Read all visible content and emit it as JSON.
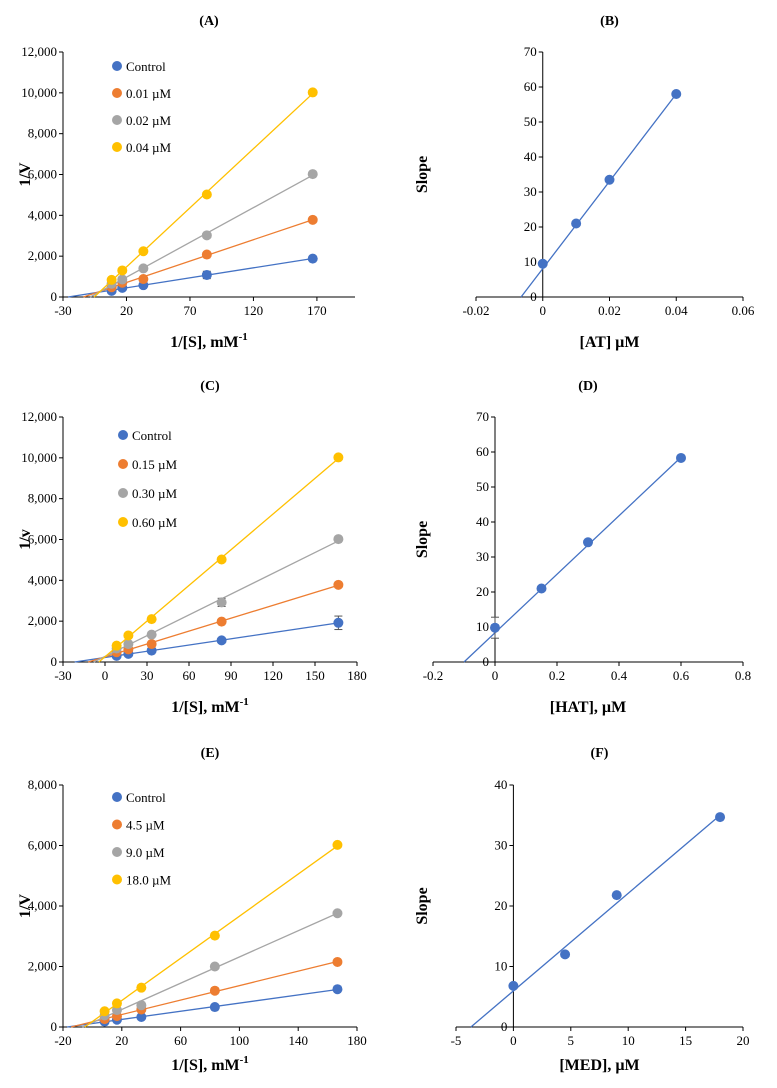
{
  "colors": {
    "control": "#4472C4",
    "orange": "#ED7D31",
    "gray": "#A5A5A5",
    "yellow": "#FFC000",
    "axis": "#000000",
    "fitline": "#4472C4"
  },
  "chart_data": [
    {
      "id": "A",
      "kind": "lb",
      "type": "scatter",
      "title": "(A)",
      "xlabel": "1/[S], mM",
      "xlabel_sup": "-1",
      "ylabel": "1/V",
      "xlim": [
        -30,
        200
      ],
      "ylim": [
        0,
        12000
      ],
      "xticks": [
        -30,
        20,
        70,
        120,
        170
      ],
      "xtick_labels": [
        "-30",
        "20",
        "70",
        "120",
        "170"
      ],
      "yticks": [
        0,
        2000,
        4000,
        6000,
        8000,
        10000,
        12000
      ],
      "ytick_labels": [
        "0",
        "2,000",
        "4,000",
        "6,000",
        "8,000",
        "10,000",
        "12,000"
      ],
      "x": [
        8.3,
        16.7,
        33.3,
        83.3,
        166.7
      ],
      "series": [
        {
          "name": "Control",
          "color": "control",
          "values": [
            300,
            450,
            580,
            1080,
            1880
          ],
          "errors": [
            0,
            0,
            0,
            180,
            0
          ]
        },
        {
          "name": "0.01 µM",
          "color": "orange",
          "values": [
            480,
            700,
            880,
            2080,
            3780
          ]
        },
        {
          "name": "0.02 µM",
          "color": "gray",
          "values": [
            650,
            860,
            1400,
            3020,
            6020
          ]
        },
        {
          "name": "0.04 µM",
          "color": "yellow",
          "values": [
            840,
            1300,
            2240,
            5020,
            10020
          ]
        }
      ]
    },
    {
      "id": "B",
      "kind": "slope",
      "type": "scatter",
      "title": "(B)",
      "xlabel": "[AT] µM",
      "ylabel": "Slope",
      "xlim": [
        -0.02,
        0.06
      ],
      "ylim": [
        0,
        70
      ],
      "xticks": [
        -0.02,
        0,
        0.02,
        0.04,
        0.06
      ],
      "xtick_labels": [
        "-0.02",
        "0",
        "0.02",
        "0.04",
        "0.06"
      ],
      "yticks": [
        0,
        10,
        20,
        30,
        40,
        50,
        60,
        70
      ],
      "ytick_labels": [
        "0",
        "10",
        "20",
        "30",
        "40",
        "50",
        "60",
        "70"
      ],
      "points": {
        "x": [
          0,
          0.01,
          0.02,
          0.04
        ],
        "y": [
          9.5,
          21,
          33.5,
          58
        ]
      },
      "fit": {
        "x": [
          -0.0065,
          0.04
        ],
        "y": [
          0,
          58
        ]
      }
    },
    {
      "id": "C",
      "kind": "lb",
      "type": "scatter",
      "title": "(C)",
      "xlabel": "1/[S], mM",
      "xlabel_sup": "-1",
      "ylabel": "1/v",
      "xlim": [
        -30,
        180
      ],
      "ylim": [
        0,
        12000
      ],
      "xticks": [
        -30,
        0,
        30,
        60,
        90,
        120,
        150,
        180
      ],
      "xtick_labels": [
        "-30",
        "0",
        "30",
        "60",
        "90",
        "120",
        "150",
        "180"
      ],
      "yticks": [
        0,
        2000,
        4000,
        6000,
        8000,
        10000,
        12000
      ],
      "ytick_labels": [
        "0",
        "2,000",
        "4,000",
        "6,000",
        "8,000",
        "10,000",
        "12,000"
      ],
      "x": [
        8.3,
        16.7,
        33.3,
        83.3,
        166.7
      ],
      "series": [
        {
          "name": "Control",
          "color": "control",
          "values": [
            300,
            400,
            560,
            1060,
            1920
          ],
          "errors": [
            0,
            0,
            0,
            0,
            330
          ]
        },
        {
          "name": "0.15 µM",
          "color": "orange",
          "values": [
            480,
            620,
            880,
            1980,
            3780
          ]
        },
        {
          "name": "0.30 µM",
          "color": "gray",
          "values": [
            660,
            880,
            1340,
            2920,
            6020
          ],
          "errors": [
            0,
            0,
            0,
            200,
            0
          ]
        },
        {
          "name": "0.60 µM",
          "color": "yellow",
          "values": [
            800,
            1300,
            2100,
            5020,
            10020
          ]
        }
      ]
    },
    {
      "id": "D",
      "kind": "slope",
      "type": "scatter",
      "title": "(D)",
      "xlabel": "[HAT], µM",
      "ylabel": "Slope",
      "xlim": [
        -0.2,
        0.8
      ],
      "ylim": [
        0,
        70
      ],
      "xticks": [
        -0.2,
        0,
        0.2,
        0.4,
        0.6,
        0.8
      ],
      "xtick_labels": [
        "-0.2",
        "0",
        "0.2",
        "0.4",
        "0.6",
        "0.8"
      ],
      "yticks": [
        0,
        10,
        20,
        30,
        40,
        50,
        60,
        70
      ],
      "ytick_labels": [
        "0",
        "10",
        "20",
        "30",
        "40",
        "50",
        "60",
        "70"
      ],
      "points": {
        "x": [
          0,
          0.15,
          0.3,
          0.6
        ],
        "y": [
          9.8,
          21,
          34.2,
          58.3
        ],
        "errors": [
          3,
          0,
          0,
          0
        ]
      },
      "fit": {
        "x": [
          -0.1,
          0.6
        ],
        "y": [
          0,
          58.5
        ]
      }
    },
    {
      "id": "E",
      "kind": "lb",
      "type": "scatter",
      "title": "(E)",
      "xlabel": "1/[S], mM",
      "xlabel_sup": "-1",
      "ylabel": "1/V",
      "xlim": [
        -20,
        180
      ],
      "ylim": [
        0,
        8000
      ],
      "xticks": [
        -20,
        20,
        60,
        100,
        140,
        180
      ],
      "xtick_labels": [
        "-20",
        "20",
        "60",
        "100",
        "140",
        "180"
      ],
      "yticks": [
        0,
        2000,
        4000,
        6000,
        8000
      ],
      "ytick_labels": [
        "0",
        "2,000",
        "4,000",
        "6,000",
        "8,000"
      ],
      "x": [
        8.3,
        16.7,
        33.3,
        83.3,
        166.7
      ],
      "series": [
        {
          "name": "Control",
          "color": "control",
          "values": [
            180,
            240,
            330,
            660,
            1250
          ]
        },
        {
          "name": "4.5 µM",
          "color": "orange",
          "values": [
            260,
            360,
            580,
            1200,
            2150
          ]
        },
        {
          "name": "9.0 µM",
          "color": "gray",
          "values": [
            380,
            560,
            720,
            2000,
            3760
          ]
        },
        {
          "name": "18.0 µM",
          "color": "yellow",
          "values": [
            520,
            780,
            1300,
            3020,
            6020
          ]
        }
      ]
    },
    {
      "id": "F",
      "kind": "slope",
      "type": "scatter",
      "title": "(F)",
      "xlabel": "[MED], µM",
      "ylabel": "Slope",
      "xlim": [
        -5,
        20
      ],
      "ylim": [
        0,
        40
      ],
      "xticks": [
        -5,
        0,
        5,
        10,
        15,
        20
      ],
      "xtick_labels": [
        "-5",
        "0",
        "5",
        "10",
        "15",
        "20"
      ],
      "yticks": [
        0,
        10,
        20,
        30,
        40
      ],
      "ytick_labels": [
        "0",
        "10",
        "20",
        "30",
        "40"
      ],
      "points": {
        "x": [
          0,
          4.5,
          9,
          18
        ],
        "y": [
          6.8,
          12,
          21.8,
          34.7
        ]
      },
      "fit": {
        "x": [
          -3.7,
          18
        ],
        "y": [
          0,
          35
        ]
      }
    }
  ]
}
